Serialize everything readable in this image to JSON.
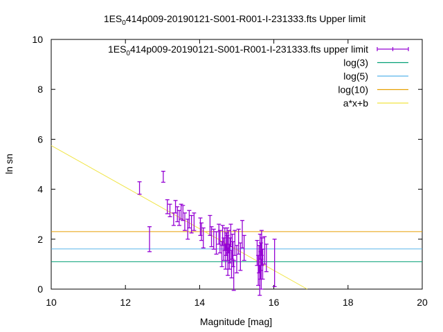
{
  "chart_data": {
    "type": "scatter",
    "title_main": "1ES",
    "title_sub": "0",
    "title_rest": "414p009-20190121-S001-R001-I-231333.fts Upper limit",
    "xlabel": "Magnitude [mag]",
    "ylabel": "ln sn",
    "xlim": [
      10,
      20
    ],
    "ylim": [
      0,
      10
    ],
    "xticks": [
      10,
      12,
      14,
      16,
      18,
      20
    ],
    "yticks": [
      0,
      2,
      4,
      6,
      8,
      10
    ],
    "grid": false,
    "legend_position": "top-right",
    "colors": {
      "points": "#9400d3",
      "log3": "#009e73",
      "log5": "#56b4e9",
      "log10": "#e69f00",
      "fit": "#f0e442"
    },
    "legend": [
      {
        "key": "points",
        "label_main": "1ES",
        "label_sub": "0",
        "label_rest": "414p009-20190121-S001-R001-I-231333.fts upper limit"
      },
      {
        "key": "log3",
        "label": "log(3)"
      },
      {
        "key": "log5",
        "label": "log(5)"
      },
      {
        "key": "log10",
        "label": "log(10)"
      },
      {
        "key": "fit",
        "label": "a*x+b"
      }
    ],
    "hlines": [
      {
        "key": "log3",
        "y": 1.0986
      },
      {
        "key": "log5",
        "y": 1.6094
      },
      {
        "key": "log10",
        "y": 2.3026
      }
    ],
    "fit_line": {
      "x": [
        10,
        16.9
      ],
      "y": [
        5.75,
        0
      ]
    },
    "series": [
      {
        "x": [
          12.38,
          12.65,
          13.02,
          13.13,
          13.2,
          13.3,
          13.35,
          13.4,
          13.45,
          13.5,
          13.55,
          13.6,
          13.68,
          13.72,
          13.78,
          13.85,
          14.02,
          14.05,
          14.1,
          14.28,
          14.32,
          14.38,
          14.45,
          14.52,
          14.55,
          14.6,
          14.62,
          14.65,
          14.68,
          14.7,
          14.72,
          14.74,
          14.75,
          14.76,
          14.78,
          14.8,
          14.82,
          14.84,
          14.86,
          14.88,
          14.9,
          14.92,
          14.95,
          15.0,
          15.05,
          15.1,
          15.15,
          15.2,
          15.55,
          15.58,
          15.6,
          15.62,
          15.63,
          15.64,
          15.65,
          15.66,
          15.67,
          15.68,
          15.7,
          15.75,
          15.8,
          16.02
        ],
        "y": [
          4.05,
          2.0,
          4.5,
          3.3,
          3.15,
          2.8,
          3.3,
          3.0,
          2.85,
          3.1,
          3.05,
          2.7,
          2.4,
          2.8,
          2.6,
          2.7,
          2.5,
          2.3,
          2.05,
          2.55,
          2.1,
          2.0,
          1.85,
          2.2,
          1.9,
          1.4,
          2.15,
          1.6,
          2.0,
          1.3,
          1.8,
          2.0,
          1.65,
          1.1,
          1.9,
          1.3,
          1.55,
          2.15,
          1.0,
          1.7,
          1.4,
          0.55,
          1.85,
          1.2,
          1.9,
          1.3,
          2.2,
          1.65,
          1.45,
          0.75,
          1.2,
          0.35,
          1.7,
          0.95,
          1.3,
          0.6,
          1.85,
          1.5,
          1.0,
          1.55,
          1.25,
          1.05
        ],
        "err": [
          0.25,
          0.5,
          0.22,
          0.28,
          0.25,
          0.25,
          0.25,
          0.3,
          0.3,
          0.3,
          0.3,
          0.35,
          0.4,
          0.35,
          0.35,
          0.35,
          0.35,
          0.35,
          0.4,
          0.4,
          0.4,
          0.4,
          0.45,
          0.4,
          0.45,
          0.5,
          0.4,
          0.45,
          0.45,
          0.5,
          0.45,
          0.45,
          0.5,
          0.55,
          0.45,
          0.5,
          0.5,
          0.45,
          0.55,
          0.5,
          0.5,
          0.6,
          0.5,
          0.55,
          0.5,
          0.55,
          0.55,
          0.5,
          0.5,
          0.6,
          0.55,
          0.6,
          0.5,
          0.55,
          0.55,
          0.6,
          0.5,
          0.55,
          0.6,
          0.55,
          0.55,
          0.95
        ]
      }
    ]
  }
}
